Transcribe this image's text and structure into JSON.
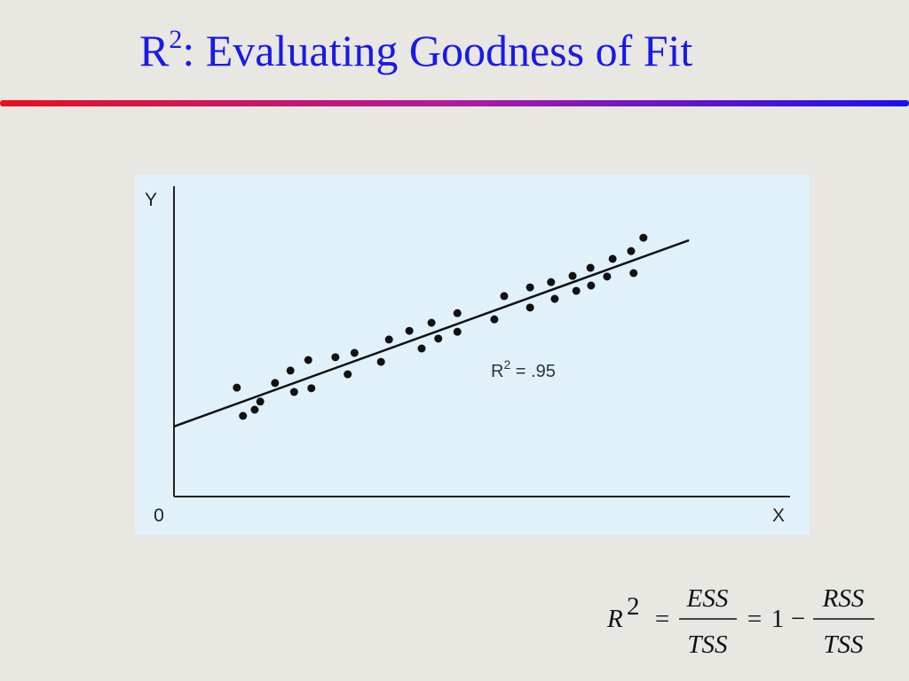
{
  "slide": {
    "title": {
      "base": "R",
      "sup": "2",
      "rest": ": Evaluating Goodness of Fit"
    },
    "formula": {
      "r": "R",
      "sup": "2",
      "eq1": "=",
      "num1": "ESS",
      "den1": "TSS",
      "eq2": "=",
      "one": "1",
      "minus": "−",
      "num2": "RSS",
      "den2": "TSS"
    }
  },
  "chart_data": {
    "type": "scatter",
    "x_label": "X",
    "y_label": "Y",
    "origin_label": "0",
    "annotation": {
      "base": "R",
      "sup": "2",
      "rest": " = .95"
    },
    "xlim": [
      0,
      100
    ],
    "ylim": [
      0,
      100
    ],
    "color": "#111111",
    "x": [
      10.2,
      11.2,
      13.1,
      14,
      16.4,
      18.9,
      19.5,
      21.8,
      22.3,
      26.2,
      28.2,
      29.3,
      33.6,
      34.9,
      38.2,
      40.2,
      41.8,
      42.9,
      46,
      46,
      52,
      53.6,
      57.8,
      57.8,
      61.2,
      61.8,
      64.7,
      65.3,
      67.6,
      67.7,
      70.3,
      71.2,
      74.2,
      74.6,
      76.2
    ],
    "values": [
      35.1,
      26,
      28,
      30.6,
      36.6,
      40.6,
      33.7,
      44,
      34.9,
      44.9,
      39.4,
      46.3,
      43.4,
      50.6,
      53.4,
      47.7,
      56,
      50.9,
      59.1,
      53.1,
      57.1,
      64.6,
      67.4,
      60.9,
      69.1,
      63.7,
      71.1,
      66.3,
      73.7,
      68,
      70.9,
      76.6,
      79.1,
      72,
      83.4
    ],
    "fit_line": {
      "x": [
        0,
        83.6
      ],
      "y": [
        22.6,
        82.6
      ]
    }
  }
}
